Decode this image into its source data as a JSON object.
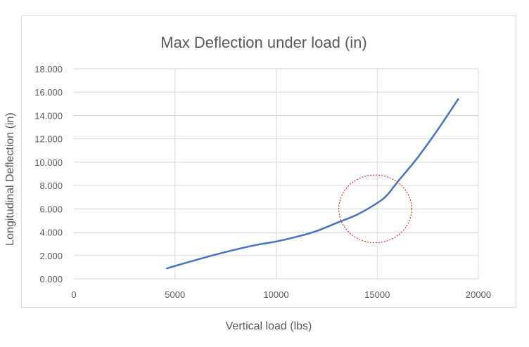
{
  "chart_data": {
    "type": "line",
    "title": "Max Deflection under load (in)",
    "xlabel": "Vertical load (lbs)",
    "ylabel": "Longitudinal Deflection (in)",
    "xlim": [
      0,
      20000
    ],
    "ylim": [
      0,
      18
    ],
    "x_ticks": [
      "0",
      "5000",
      "10000",
      "15000",
      "20000"
    ],
    "y_ticks": [
      "0.000",
      "2.000",
      "4.000",
      "6.000",
      "8.000",
      "10.000",
      "12.000",
      "14.000",
      "16.000",
      "18.000"
    ],
    "grid": "vertical and horizontal",
    "legend": "none",
    "series": [
      {
        "color": "#4472c4",
        "x": [
          4600,
          6000,
          7500,
          9000,
          10000,
          11000,
          12000,
          13000,
          14000,
          15000,
          15500,
          16000,
          17000,
          18000,
          19000
        ],
        "values": [
          0.9,
          1.6,
          2.3,
          2.9,
          3.2,
          3.6,
          4.1,
          4.8,
          5.5,
          6.5,
          7.2,
          8.3,
          10.4,
          12.8,
          15.4
        ]
      }
    ],
    "annotations": [
      {
        "type": "dashed-ellipse",
        "color": "#ff0000",
        "cx": 14900,
        "cy": 6.0,
        "rx": 1800,
        "ry": 2.9
      }
    ]
  }
}
